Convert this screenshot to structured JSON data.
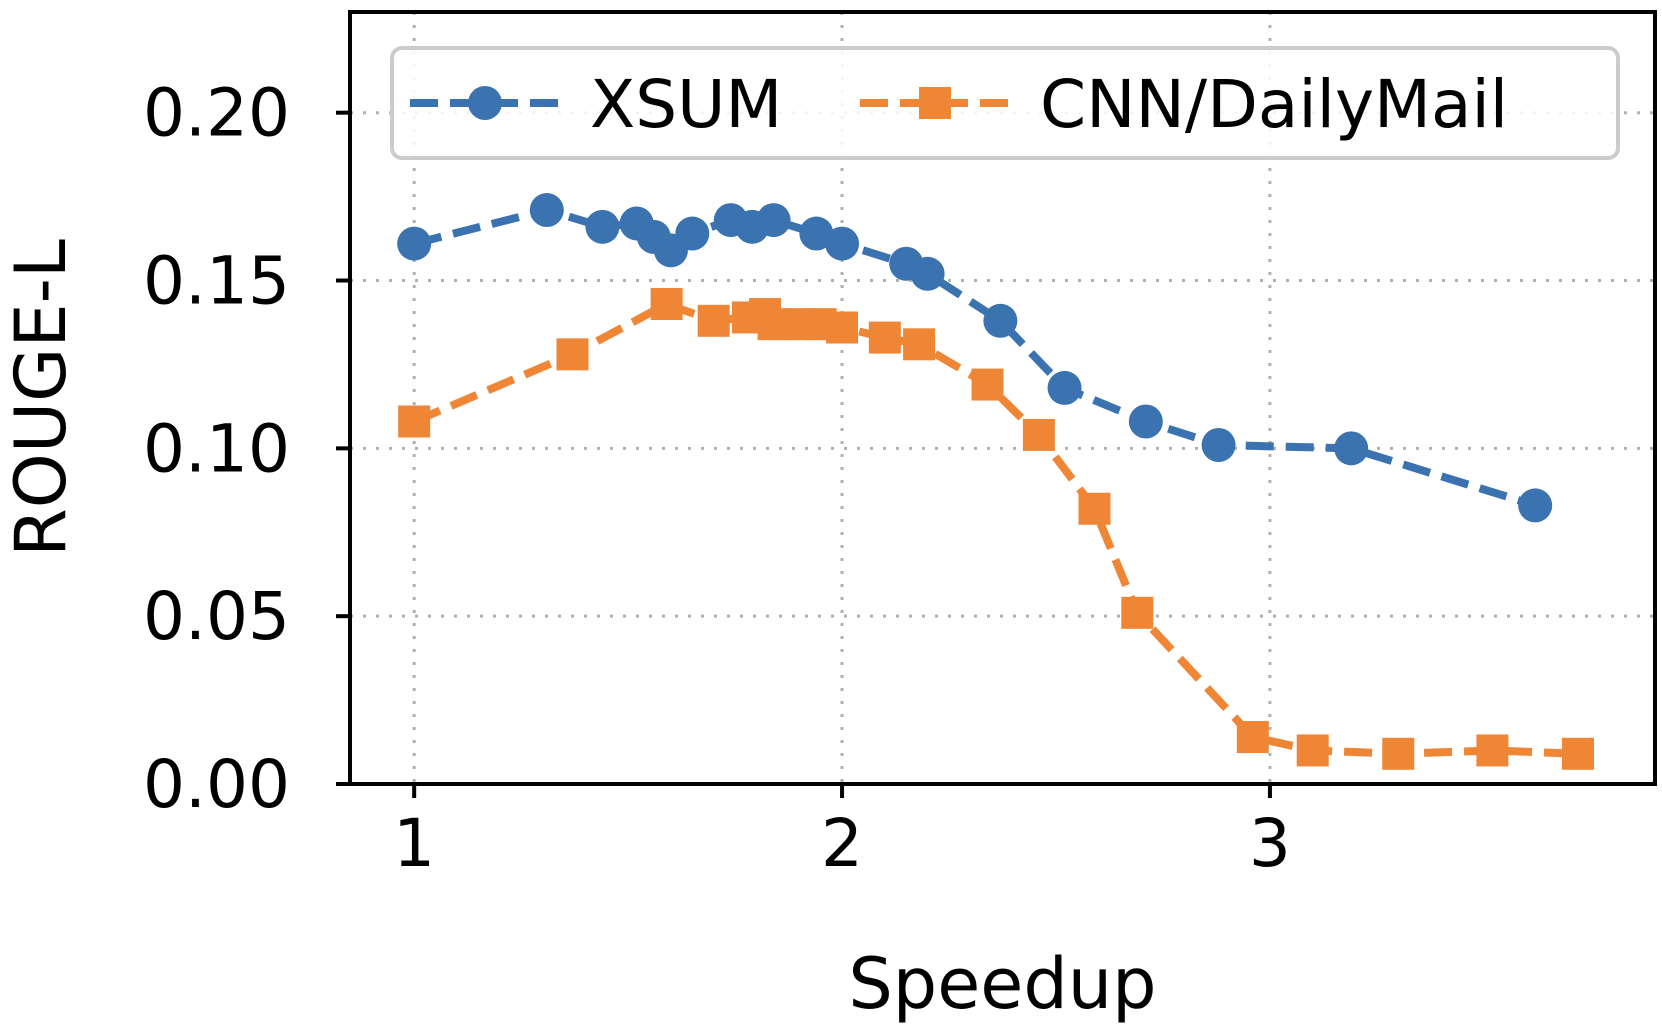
{
  "chart_data": {
    "type": "line",
    "title": "",
    "xlabel": "Speedup",
    "ylabel": "ROUGE-L",
    "xlim": [
      0.85,
      3.9
    ],
    "ylim": [
      0.0,
      0.23
    ],
    "x_ticks": [
      1,
      2,
      3
    ],
    "x_tick_labels": [
      "1",
      "2",
      "3"
    ],
    "y_ticks": [
      0.0,
      0.05,
      0.1,
      0.15,
      0.2
    ],
    "y_tick_labels": [
      "0.00",
      "0.05",
      "0.10",
      "0.15",
      "0.20"
    ],
    "grid": true,
    "legend_position": "top",
    "series": [
      {
        "name": "XSUM",
        "color": "#3a73b0",
        "marker": "circle",
        "line_style": "dashed",
        "x": [
          1.0,
          1.31,
          1.44,
          1.52,
          1.56,
          1.6,
          1.65,
          1.74,
          1.79,
          1.84,
          1.94,
          2.0,
          2.15,
          2.2,
          2.37,
          2.52,
          2.71,
          2.88,
          3.19,
          3.62
        ],
        "y": [
          0.161,
          0.171,
          0.166,
          0.167,
          0.163,
          0.159,
          0.164,
          0.168,
          0.166,
          0.168,
          0.164,
          0.161,
          0.155,
          0.152,
          0.138,
          0.118,
          0.108,
          0.101,
          0.1,
          0.083
        ]
      },
      {
        "name": "CNN/DailyMail",
        "color": "#ef8636",
        "marker": "square",
        "line_style": "dashed",
        "x": [
          1.0,
          1.37,
          1.59,
          1.7,
          1.78,
          1.82,
          1.84,
          1.9,
          1.95,
          2.0,
          2.1,
          2.18,
          2.34,
          2.46,
          2.59,
          2.69,
          2.96,
          3.1,
          3.3,
          3.52,
          3.72
        ],
        "y": [
          0.108,
          0.128,
          0.143,
          0.138,
          0.139,
          0.14,
          0.137,
          0.137,
          0.137,
          0.136,
          0.133,
          0.131,
          0.119,
          0.104,
          0.082,
          0.051,
          0.014,
          0.01,
          0.009,
          0.01,
          0.009
        ]
      }
    ]
  }
}
